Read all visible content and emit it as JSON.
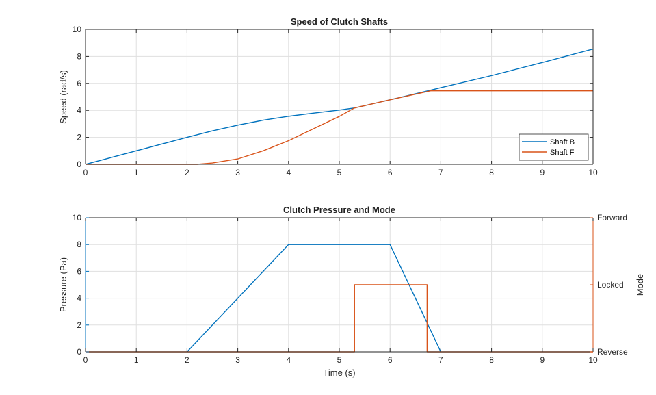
{
  "chart_data": [
    {
      "type": "line",
      "title": "Speed of Clutch Shafts",
      "xlabel": "",
      "ylabel": "Speed (rad/s)",
      "xlim": [
        0,
        10
      ],
      "ylim": [
        0,
        10
      ],
      "xticks": [
        0,
        1,
        2,
        3,
        4,
        5,
        6,
        7,
        8,
        9,
        10
      ],
      "yticks": [
        0,
        2,
        4,
        6,
        8,
        10
      ],
      "grid": true,
      "legend": "bottom-right",
      "series": [
        {
          "name": "Shaft B",
          "color": "#0072BD",
          "x": [
            0,
            1,
            2,
            2.5,
            3,
            3.5,
            4,
            4.5,
            5,
            5.3,
            6,
            6.8,
            7,
            8,
            9,
            10
          ],
          "y": [
            0,
            1,
            2,
            2.48,
            2.9,
            3.27,
            3.56,
            3.8,
            4.02,
            4.18,
            4.78,
            5.5,
            5.68,
            6.58,
            7.55,
            8.55
          ]
        },
        {
          "name": "Shaft F",
          "color": "#D95319",
          "x": [
            0,
            2.2,
            2.5,
            3,
            3.5,
            4,
            4.5,
            5,
            5.3,
            6,
            6.8,
            7,
            8,
            9,
            10
          ],
          "y": [
            0,
            0,
            0.1,
            0.4,
            1.0,
            1.75,
            2.65,
            3.55,
            4.18,
            4.78,
            5.45,
            5.45,
            5.45,
            5.45,
            5.45
          ]
        }
      ]
    },
    {
      "type": "line",
      "title": "Clutch Pressure and Mode",
      "xlabel": "Time (s)",
      "ylabel": "Pressure (Pa)",
      "y2label": "Mode",
      "xlim": [
        0,
        10
      ],
      "ylim": [
        0,
        10
      ],
      "xticks": [
        0,
        1,
        2,
        3,
        4,
        5,
        6,
        7,
        8,
        9,
        10
      ],
      "yticks": [
        0,
        2,
        4,
        6,
        8,
        10
      ],
      "y2ticks": [
        "Reverse",
        "Locked",
        "Forward"
      ],
      "grid": true,
      "left_axis_color": "#0072BD",
      "right_axis_color": "#D95319",
      "series": [
        {
          "color": "#0072BD",
          "axis": "left",
          "x": [
            2,
            4,
            6,
            7
          ],
          "y": [
            0,
            8,
            8,
            0
          ]
        },
        {
          "color": "#D95319",
          "axis": "right",
          "x": [
            0,
            5.3,
            5.3,
            6.73,
            6.73,
            10
          ],
          "y": [
            0,
            0,
            5,
            5,
            0,
            0
          ]
        }
      ]
    }
  ]
}
